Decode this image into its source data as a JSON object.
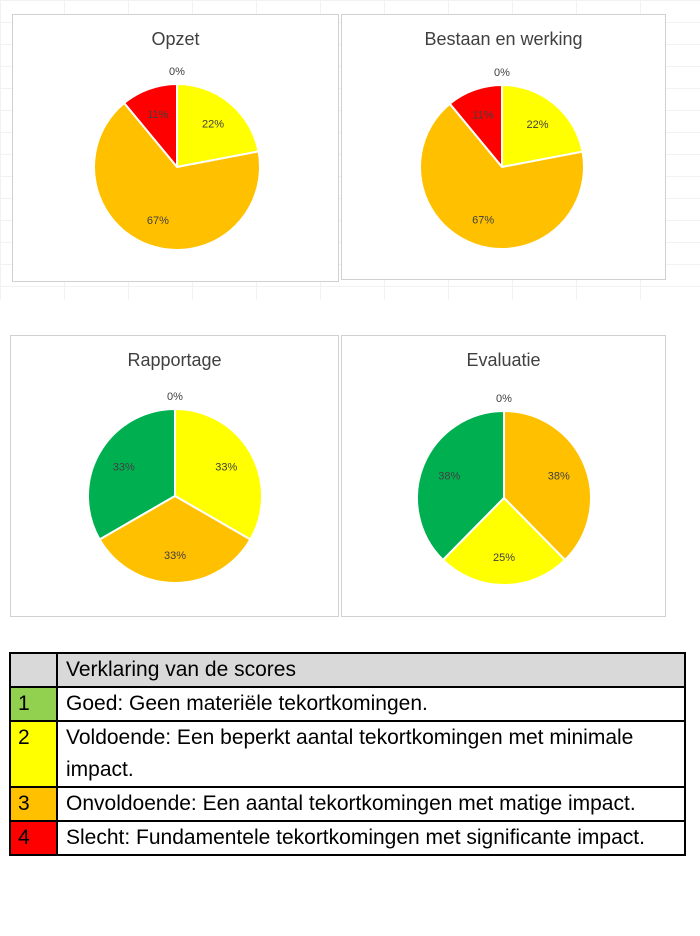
{
  "chart_data": [
    {
      "type": "pie",
      "title": "Opzet",
      "slices": [
        {
          "label": "4",
          "value": 11,
          "label_text": "11%",
          "color": "#ff0000"
        },
        {
          "label": "1",
          "value": 0,
          "label_text": "0%",
          "color": "#92d050"
        },
        {
          "label": "2",
          "value": 22,
          "label_text": "22%",
          "color": "#ffff00"
        },
        {
          "label": "3",
          "value": 67,
          "label_text": "67%",
          "color": "#ffc000"
        }
      ]
    },
    {
      "type": "pie",
      "title": "Bestaan en werking",
      "slices": [
        {
          "label": "4",
          "value": 11,
          "label_text": "11%",
          "color": "#ff0000"
        },
        {
          "label": "1",
          "value": 0,
          "label_text": "0%",
          "color": "#92d050"
        },
        {
          "label": "2",
          "value": 22,
          "label_text": "22%",
          "color": "#ffff00"
        },
        {
          "label": "3",
          "value": 67,
          "label_text": "67%",
          "color": "#ffc000"
        }
      ]
    },
    {
      "type": "pie",
      "title": "Rapportage",
      "slices": [
        {
          "label": "1",
          "value": 33,
          "label_text": "33%",
          "color": "#00b050"
        },
        {
          "label": "4",
          "value": 0,
          "label_text": "0%",
          "color": "#ff0000"
        },
        {
          "label": "2",
          "value": 33,
          "label_text": "33%",
          "color": "#ffff00"
        },
        {
          "label": "3",
          "value": 33,
          "label_text": "33%",
          "color": "#ffc000"
        }
      ]
    },
    {
      "type": "pie",
      "title": "Evaluatie",
      "slices": [
        {
          "label": "1",
          "value": 38,
          "label_text": "38%",
          "color": "#00b050"
        },
        {
          "label": "4",
          "value": 0,
          "label_text": "0%",
          "color": "#ff0000"
        },
        {
          "label": "3",
          "value": 38,
          "label_text": "38%",
          "color": "#ffc000"
        },
        {
          "label": "2",
          "value": 25,
          "label_text": "25%",
          "color": "#ffff00"
        }
      ]
    }
  ],
  "legend": {
    "header": "Verklaring van de scores",
    "rows": [
      {
        "num": "1",
        "text": "Goed: Geen materiële tekortkomingen.",
        "color": "#92d050"
      },
      {
        "num": "2",
        "text": "Voldoende: Een beperkt aantal tekortkomingen met minimale impact.",
        "color": "#ffff00"
      },
      {
        "num": "3",
        "text": "Onvoldoende: Een aantal tekortkomingen met matige impact.",
        "color": "#ffc000"
      },
      {
        "num": "4",
        "text": "Slecht: Fundamentele tekortkomingen met significante impact.",
        "color": "#ff0000"
      }
    ]
  }
}
